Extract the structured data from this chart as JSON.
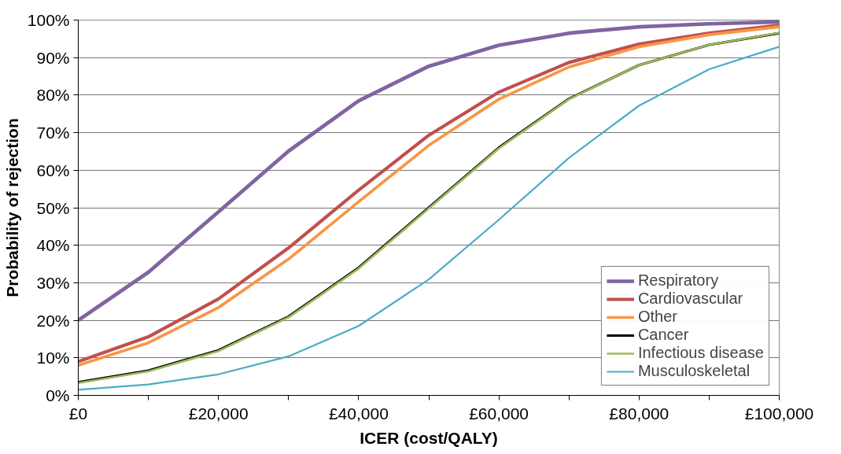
{
  "chart_data": {
    "type": "line",
    "xlabel": "ICER (cost/QALY)",
    "ylabel": "Probability of rejection",
    "x": [
      0,
      10000,
      20000,
      30000,
      40000,
      50000,
      60000,
      70000,
      80000,
      90000,
      100000
    ],
    "series": [
      {
        "name": "Respiratory",
        "color": "#8064a2",
        "values": [
          20,
          32.8,
          48.9,
          65.1,
          78.5,
          87.7,
          93.3,
          96.5,
          98.2,
          99.0,
          99.5
        ]
      },
      {
        "name": "Cardiovascular",
        "color": "#c0504d",
        "values": [
          9.0,
          15.6,
          25.7,
          39.3,
          54.7,
          69.3,
          80.8,
          88.7,
          93.6,
          96.5,
          98.6
        ]
      },
      {
        "name": "Other",
        "color": "#f79646",
        "values": [
          8.0,
          14.0,
          23.4,
          36.3,
          51.6,
          66.6,
          78.9,
          87.5,
          92.9,
          96.1,
          98.2
        ]
      },
      {
        "name": "Cancer",
        "color": "#000000",
        "values": [
          3.5,
          6.6,
          12.0,
          21.0,
          34.0,
          50.0,
          66.0,
          79.0,
          88.0,
          93.4,
          96.5
        ]
      },
      {
        "name": "Infectious disease",
        "color": "#9bbb59",
        "values": [
          3.3,
          6.4,
          11.8,
          20.8,
          33.8,
          49.8,
          65.8,
          78.9,
          88.0,
          93.4,
          96.6
        ]
      },
      {
        "name": "Musculoskeletal",
        "color": "#4bacc6",
        "values": [
          1.5,
          2.9,
          5.6,
          10.4,
          18.5,
          30.9,
          46.8,
          63.3,
          77.2,
          86.9,
          92.9
        ]
      }
    ],
    "xlim": [
      0,
      100000
    ],
    "xticks": [
      {
        "value": 0,
        "label": "£0"
      },
      {
        "value": 10000,
        "label": null
      },
      {
        "value": 20000,
        "label": "£20,000"
      },
      {
        "value": 30000,
        "label": null
      },
      {
        "value": 40000,
        "label": "£40,000"
      },
      {
        "value": 50000,
        "label": null
      },
      {
        "value": 60000,
        "label": "£60,000"
      },
      {
        "value": 70000,
        "label": null
      },
      {
        "value": 80000,
        "label": "£80,000"
      },
      {
        "value": 90000,
        "label": null
      },
      {
        "value": 100000,
        "label": "£100,000"
      }
    ],
    "ylim": [
      0,
      100
    ],
    "yticks": [
      {
        "value": 0,
        "label": "0%"
      },
      {
        "value": 10,
        "label": "10%"
      },
      {
        "value": 20,
        "label": "20%"
      },
      {
        "value": 30,
        "label": "30%"
      },
      {
        "value": 40,
        "label": "40%"
      },
      {
        "value": 50,
        "label": "50%"
      },
      {
        "value": 60,
        "label": "60%"
      },
      {
        "value": 70,
        "label": "70%"
      },
      {
        "value": 80,
        "label": "80%"
      },
      {
        "value": 90,
        "label": "90%"
      },
      {
        "value": 100,
        "label": "100%"
      }
    ],
    "grid": "y",
    "legend": "bottom right",
    "marker": "none",
    "line_style": "solid"
  }
}
